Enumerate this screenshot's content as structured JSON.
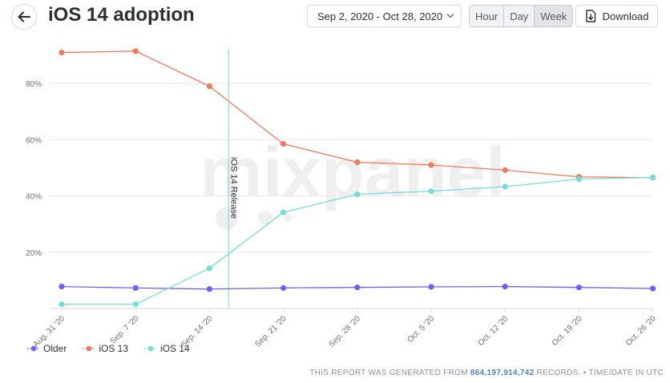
{
  "header": {
    "title": "iOS 14 adoption",
    "date_range": "Sep 2, 2020 - Oct 28, 2020",
    "units": [
      "Hour",
      "Day",
      "Week"
    ],
    "active_unit": "Week",
    "download_label": "Download"
  },
  "footer": {
    "prefix": "THIS REPORT WAS GENERATED FROM",
    "records": "864,197,914,742",
    "suffix": "RECORDS. • TIME/DATE IN UTC"
  },
  "chart_data": {
    "type": "line",
    "categories": [
      "Aug. 31 '20",
      "Sep. 7 '20",
      "Sep. 14 '20",
      "Sep. 21 '20",
      "Sep. 28 '20",
      "Oct. 5 '20",
      "Oct. 12 '20",
      "Oct. 19 '20",
      "Oct. 26 '20"
    ],
    "yticks": [
      "20%",
      "40%",
      "60%",
      "80%"
    ],
    "ytick_values": [
      20,
      40,
      60,
      80
    ],
    "ylim": [
      0,
      96
    ],
    "grid": true,
    "legend_position": "bottom-left",
    "watermark": "mixpanel",
    "annotation": {
      "label": "iOS 14 Release",
      "x": 2.26
    },
    "series": [
      {
        "name": "Older",
        "color": "#7b5cf0",
        "values": [
          7.8,
          7.3,
          6.9,
          7.3,
          7.5,
          7.7,
          7.8,
          7.5,
          7.1
        ]
      },
      {
        "name": "iOS 13",
        "color": "#ef7b5d",
        "values": [
          91,
          91.5,
          79,
          58.5,
          52,
          51,
          49.2,
          46.8,
          46.5
        ]
      },
      {
        "name": "iOS 14",
        "color": "#77dcd8",
        "values": [
          1.5,
          1.5,
          14.3,
          34.2,
          40.6,
          41.7,
          43.3,
          46,
          46.6
        ]
      }
    ]
  }
}
